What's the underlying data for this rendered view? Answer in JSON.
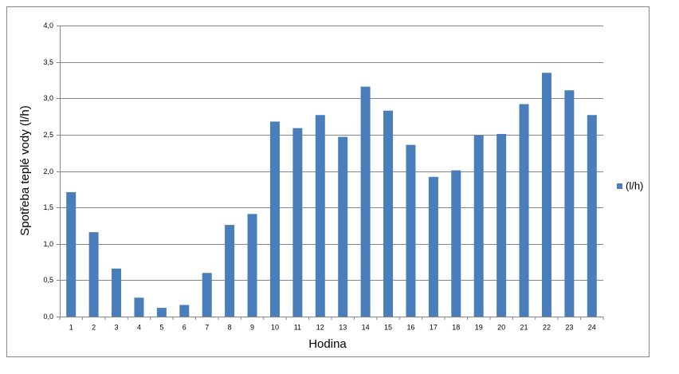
{
  "chart_data": {
    "type": "bar",
    "x_label": "Hodina",
    "y_label": "Spotřeba teplé vody (l/h)",
    "categories": [
      "1",
      "2",
      "3",
      "4",
      "5",
      "6",
      "7",
      "8",
      "9",
      "10",
      "11",
      "12",
      "13",
      "14",
      "15",
      "16",
      "17",
      "18",
      "19",
      "20",
      "21",
      "22",
      "23",
      "24"
    ],
    "series": [
      {
        "name": "(l/h)",
        "color": "#4a7ebb",
        "values": [
          1.71,
          1.16,
          0.66,
          0.26,
          0.12,
          0.16,
          0.6,
          1.26,
          1.41,
          2.68,
          2.59,
          2.77,
          2.47,
          3.16,
          2.83,
          2.36,
          1.92,
          2.01,
          2.49,
          2.51,
          2.92,
          3.35,
          3.11,
          2.77
        ]
      }
    ],
    "ylim": [
      0,
      4
    ],
    "yticks": [
      {
        "value": 0,
        "label": "0,0"
      },
      {
        "value": 0.5,
        "label": "0,5"
      },
      {
        "value": 1,
        "label": "1,0"
      },
      {
        "value": 1.5,
        "label": "1,5"
      },
      {
        "value": 2,
        "label": "2,0"
      },
      {
        "value": 2.5,
        "label": "2,5"
      },
      {
        "value": 3,
        "label": "3,0"
      },
      {
        "value": 3.5,
        "label": "3,5"
      },
      {
        "value": 4,
        "label": "4,0"
      }
    ],
    "grid": true,
    "legend": "right"
  }
}
